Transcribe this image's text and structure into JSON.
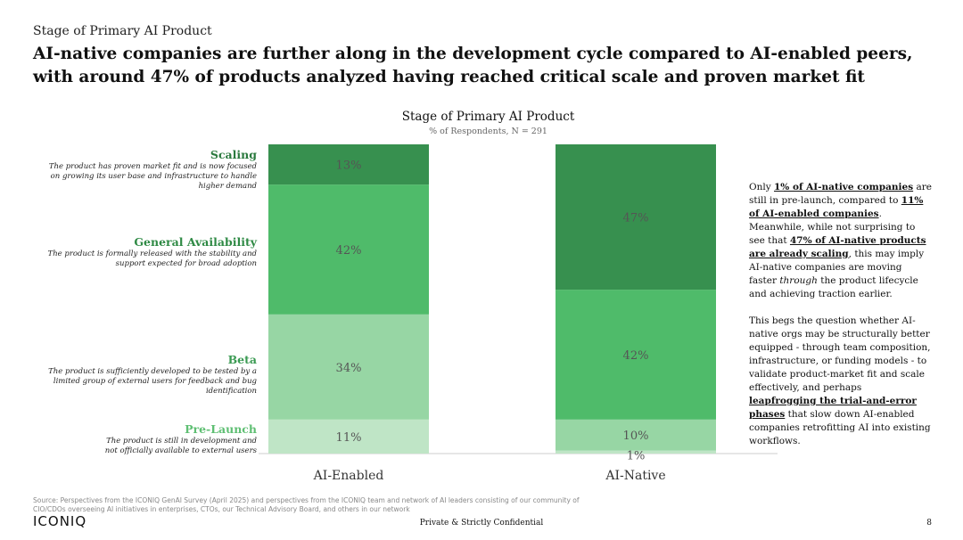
{
  "header": {
    "eyebrow": "Stage of Primary AI Product",
    "headline": "AI-native companies are further along in the development cycle compared to AI-enabled peers, with around 47% of products analyzed having reached critical scale and proven market fit"
  },
  "chart_data": {
    "type": "bar",
    "stacked": true,
    "title": "Stage of Primary AI Product",
    "subtitle": "% of Respondents, N = 291",
    "categories": [
      "AI-Enabled",
      "AI-Native"
    ],
    "ylim": [
      0,
      100
    ],
    "series": [
      {
        "name": "Pre-Launch",
        "values": [
          11,
          1
        ],
        "color": "#bfe5c6",
        "label_color": "#5fbf73"
      },
      {
        "name": "Beta",
        "values": [
          34,
          10
        ],
        "color": "#97d6a4",
        "label_color": "#3a9a52"
      },
      {
        "name": "General Availability",
        "values": [
          42,
          42
        ],
        "color": "#4fbb6a",
        "label_color": "#2f8a45"
      },
      {
        "name": "Scaling",
        "values": [
          13,
          47
        ],
        "color": "#37904f",
        "label_color": "#2a7a3e"
      }
    ],
    "value_labels": [
      [
        "11%",
        "1%"
      ],
      [
        "34%",
        "10%"
      ],
      [
        "42%",
        "42%"
      ],
      [
        "13%",
        "47%"
      ]
    ]
  },
  "stage_descriptions": {
    "scaling": "The product has proven market fit and is now focused on growing its user base and infrastructure to handle higher demand",
    "ga": "The product is formally released with the stability and support expected for broad adoption",
    "beta": "The product is sufficiently developed to be tested by a limited group of external users for feedback and bug identification",
    "prelaunch": "The product is still in development and not officially available to external users"
  },
  "commentary": {
    "p1_a": "Only ",
    "p1_b": "1% of AI-native companies",
    "p1_c": " are still in pre-launch, compared to ",
    "p1_d": "11% of AI-enabled companies",
    "p1_e": ". Meanwhile, while not surprising to see that ",
    "p1_f": "47% of AI-native products are already scaling",
    "p1_g": ", this may imply AI-native companies are moving faster ",
    "p1_h": "through",
    "p1_i": " the product lifecycle and achieving traction earlier.",
    "p2_a": "This begs the question whether AI-native orgs may be structurally better equipped - through team composition, infrastructure, or funding models - to validate product-market fit and scale effectively, and perhaps ",
    "p2_b": "leapfrogging the trial-and-error phases",
    "p2_c": " that slow down AI-enabled companies retrofitting AI into existing workflows."
  },
  "footer": {
    "source": "Source: Perspectives from the ICONIQ GenAI Survey (April 2025) and perspectives from the ICONIQ team and network of AI leaders consisting of our community of CIO/CDOs overseeing AI initiatives in enterprises, CTOs, our Technical Advisory Board, and others in our network",
    "logo": "ICONIQ",
    "confidential": "Private & Strictly Confidential",
    "page": "8"
  }
}
